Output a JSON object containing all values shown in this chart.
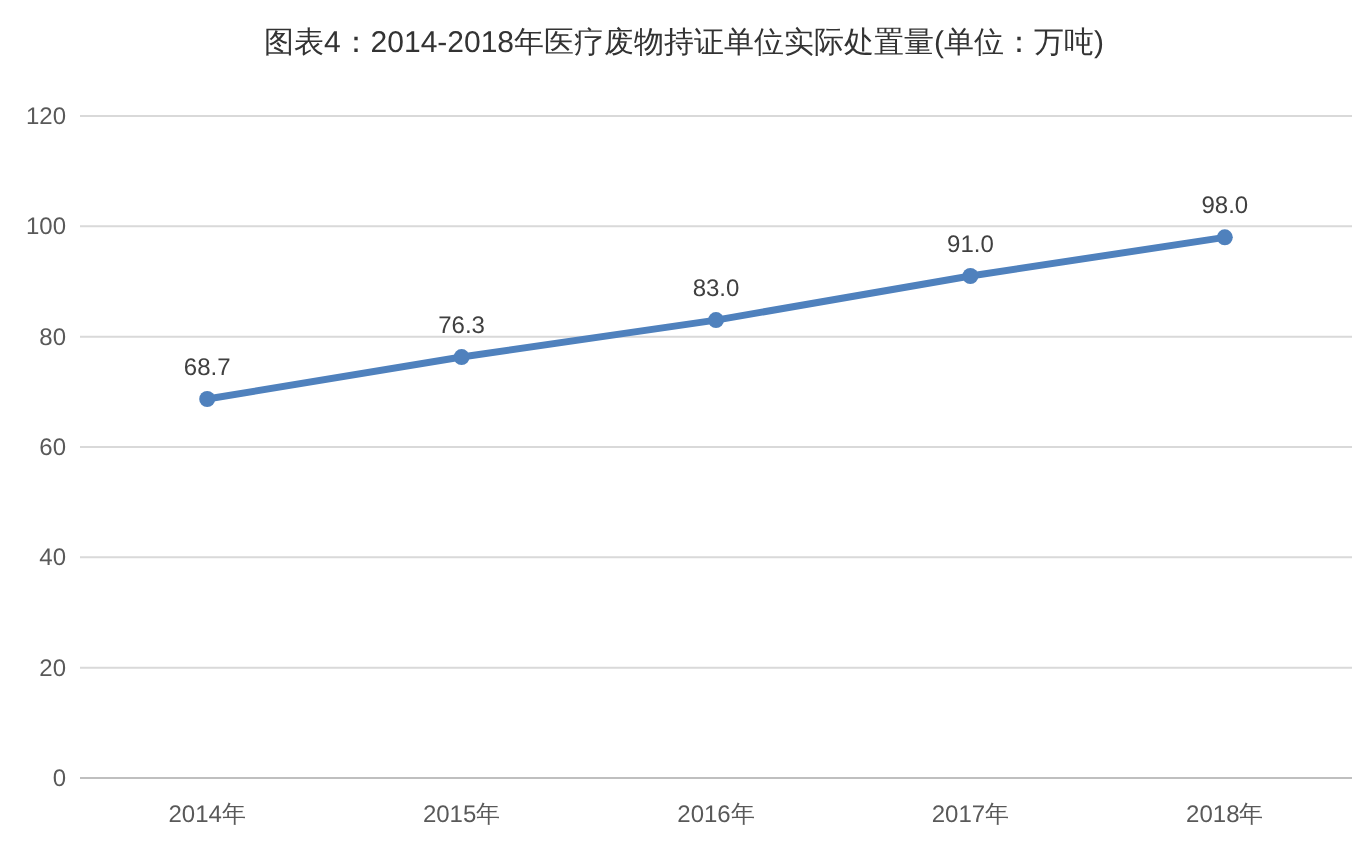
{
  "chart_data": {
    "type": "line",
    "title": "图表4：2014-2018年医疗废物持证单位实际处置量(单位：万吨)",
    "categories": [
      "2014年",
      "2015年",
      "2016年",
      "2017年",
      "2018年"
    ],
    "series": [
      {
        "color": "#4f81bd",
        "values": [
          68.7,
          76.3,
          83.0,
          91.0,
          98.0
        ]
      }
    ],
    "value_labels": [
      "68.7",
      "76.3",
      "83.0",
      "91.0",
      "98.0"
    ],
    "ylim": [
      0,
      120
    ],
    "yticks": [
      0,
      20,
      40,
      60,
      80,
      100,
      120
    ],
    "grid": "y",
    "marker": "circle",
    "line_style": "solid"
  }
}
